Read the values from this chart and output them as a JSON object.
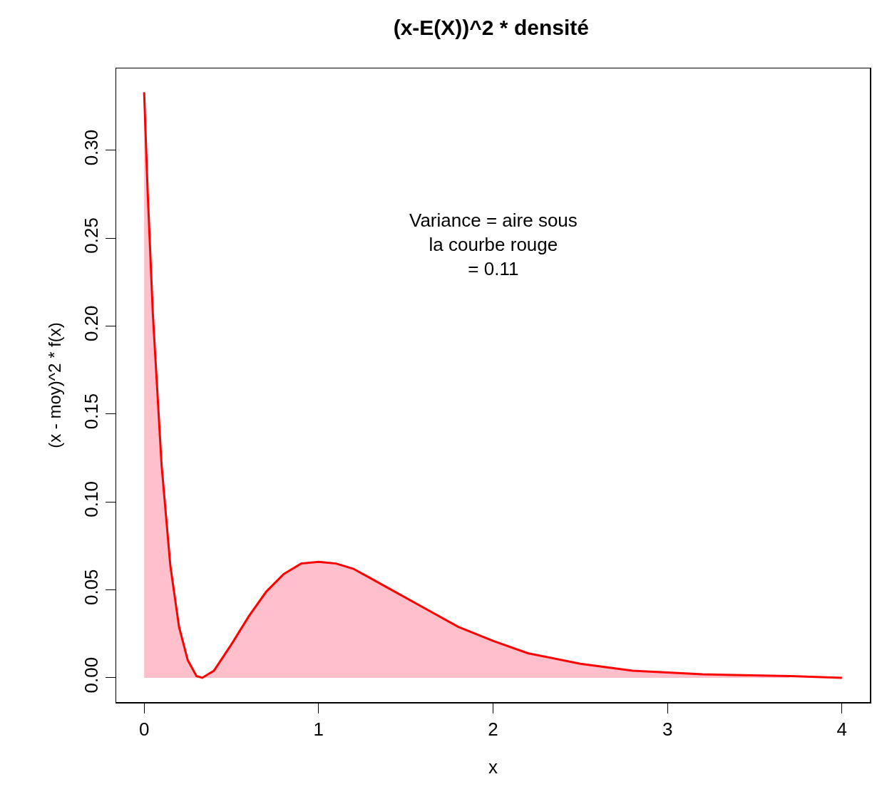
{
  "chart_data": {
    "type": "line",
    "title": "(x-E(X))^2 * densité",
    "xlabel": "x",
    "ylabel": "(x - moy)^2 * f(x)",
    "annotations": [
      "Variance = aire sous\nla courbe rouge\n= 0.11"
    ],
    "series": [
      {
        "type": "area",
        "color": "#ffc0cb",
        "x": [
          0,
          0.02,
          0.05,
          0.1,
          0.15,
          0.2,
          0.25,
          0.3,
          0.333,
          0.4,
          0.5,
          0.6,
          0.7,
          0.8,
          0.9,
          1.0,
          1.1,
          1.2,
          1.4,
          1.6,
          1.8,
          2.0,
          2.2,
          2.5,
          2.8,
          3.2,
          3.7
        ],
        "values": [
          0.333,
          0.277,
          0.207,
          0.121,
          0.064,
          0.029,
          0.01,
          0.001,
          0,
          0.004,
          0.019,
          0.035,
          0.049,
          0.059,
          0.065,
          0.066,
          0.065,
          0.062,
          0.051,
          0.04,
          0.029,
          0.021,
          0.014,
          0.008,
          0.004,
          0.002,
          0.001
        ]
      },
      {
        "color": "#ff0000",
        "x": [
          0,
          0.02,
          0.05,
          0.1,
          0.15,
          0.2,
          0.25,
          0.3,
          0.333,
          0.4,
          0.5,
          0.6,
          0.7,
          0.8,
          0.9,
          1.0,
          1.1,
          1.2,
          1.4,
          1.6,
          1.8,
          2.0,
          2.2,
          2.5,
          2.8,
          3.2,
          3.7,
          4.0
        ],
        "values": [
          0.333,
          0.277,
          0.207,
          0.121,
          0.064,
          0.029,
          0.01,
          0.001,
          0,
          0.004,
          0.019,
          0.035,
          0.049,
          0.059,
          0.065,
          0.066,
          0.065,
          0.062,
          0.051,
          0.04,
          0.029,
          0.021,
          0.014,
          0.008,
          0.004,
          0.002,
          0.001,
          0
        ]
      }
    ],
    "xlim": [
      -0.16,
      4.16
    ],
    "xticks": [
      0,
      1,
      2,
      3,
      4
    ],
    "ylim": [
      -0.0138,
      0.3466
    ],
    "yticks": [
      {
        "value": 0,
        "label": "0.00"
      },
      {
        "value": 0.05,
        "label": "0.05"
      },
      {
        "value": 0.1,
        "label": "0.10"
      },
      {
        "value": 0.15,
        "label": "0.15"
      },
      {
        "value": 0.2,
        "label": "0.20"
      },
      {
        "value": 0.25,
        "label": "0.25"
      },
      {
        "value": 0.3,
        "label": "0.30"
      }
    ],
    "grid": false,
    "marker": "none",
    "line_style": "solid"
  }
}
